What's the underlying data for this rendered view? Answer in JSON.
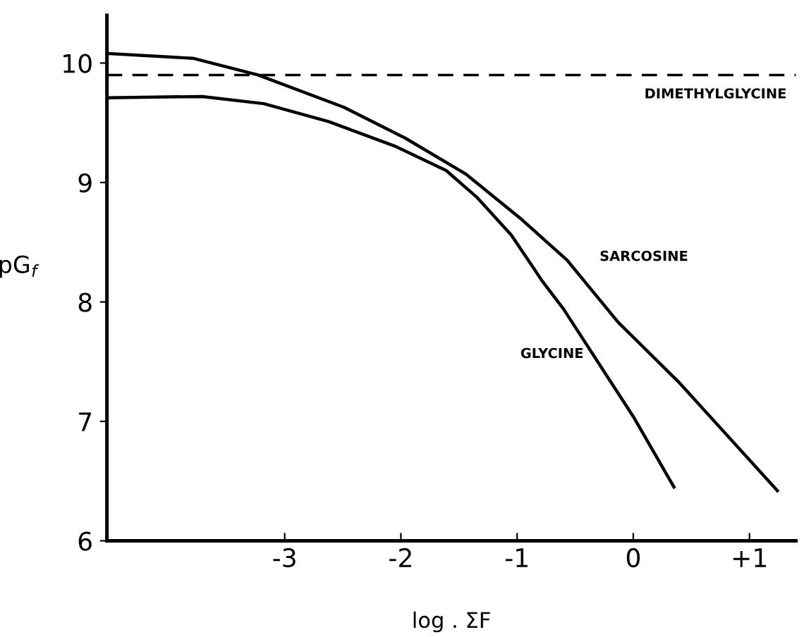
{
  "chart_data": {
    "type": "line",
    "xlabel": "log . ΣF",
    "ylabel": "pG$_{f}$",
    "xlim": [
      -4.53,
      1.4
    ],
    "ylim": [
      6,
      10.4
    ],
    "xticks": [
      -3,
      -2,
      -1,
      0,
      {
        "value": 1,
        "label": "+1"
      }
    ],
    "yticks": [
      6,
      7,
      8,
      9,
      10
    ],
    "grid": false,
    "legend": false,
    "marker": "none",
    "line_style": "solid",
    "series": [
      {
        "name": "SARCOSINE",
        "color": "#000000",
        "x": [
          -4.52,
          -3.79,
          -3.23,
          -2.49,
          -1.96,
          -1.44,
          -0.96,
          -0.57,
          -0.13,
          0.39,
          1.24
        ],
        "values": [
          10.08,
          10.04,
          9.9,
          9.63,
          9.37,
          9.07,
          8.69,
          8.35,
          7.83,
          7.33,
          6.42
        ]
      },
      {
        "name": "GLYCINE",
        "color": "#000000",
        "x": [
          -4.52,
          -3.71,
          -3.18,
          -2.62,
          -2.04,
          -1.61,
          -1.35,
          -1.05,
          -0.78,
          -0.6,
          0.0,
          0.35
        ],
        "values": [
          9.71,
          9.72,
          9.66,
          9.51,
          9.3,
          9.1,
          8.88,
          8.56,
          8.17,
          7.94,
          7.04,
          6.45
        ]
      }
    ],
    "ref_lines": [
      {
        "axis": "y",
        "value": 9.9,
        "label": "DIMETHYLGLYCINE",
        "color": "#000000",
        "line_style": "dashed"
      }
    ]
  }
}
